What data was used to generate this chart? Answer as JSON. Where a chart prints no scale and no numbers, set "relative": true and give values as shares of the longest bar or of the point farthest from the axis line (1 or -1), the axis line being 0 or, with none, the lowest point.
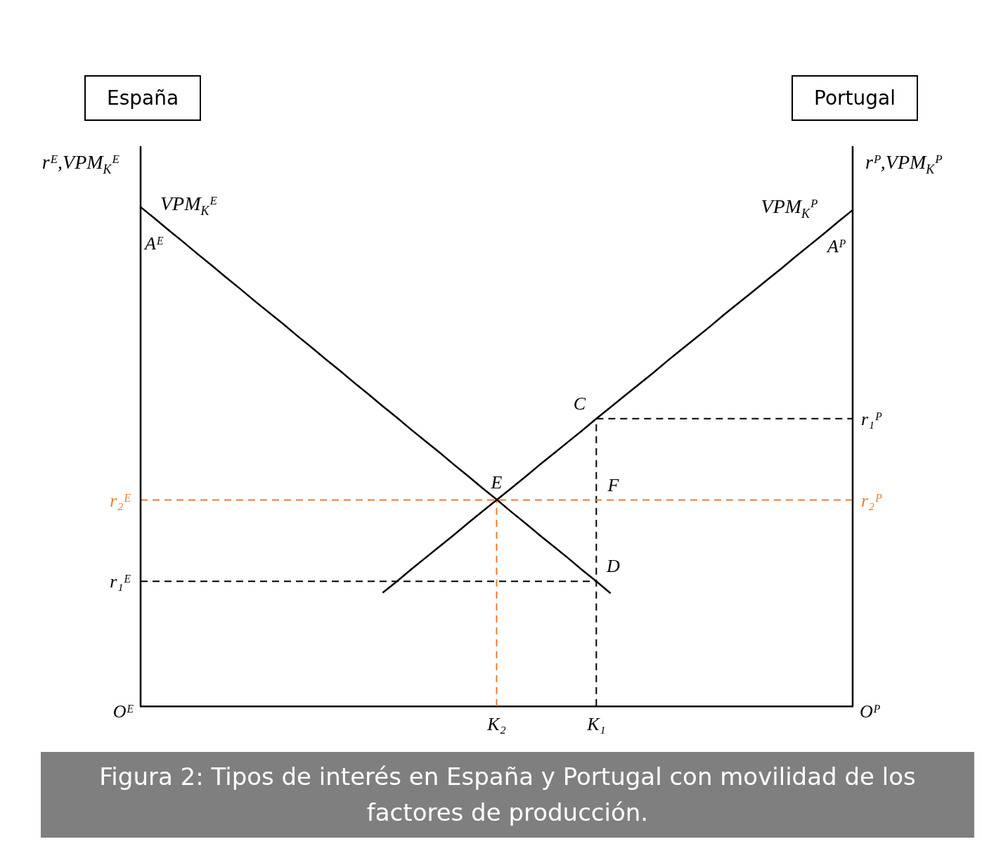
{
  "chart_data": {
    "type": "line",
    "relative": true,
    "ylabel": "rᴱ,VPM$_{K}$ᴱ",
    "y2label": "rᴾ,VPM$_{K}$ᴾ",
    "tick_labels": "x",
    "grid": false,
    "legend": false,
    "marker": "none",
    "categories": [
      null,
      null,
      null,
      null,
      null,
      null,
      null,
      null,
      null,
      null,
      null,
      null,
      null,
      null,
      null,
      null,
      null,
      null,
      null,
      null,
      null,
      null,
      null,
      null,
      null,
      "K₂",
      null,
      null,
      null,
      null,
      null,
      null,
      "K₁",
      null,
      null,
      null,
      null,
      null,
      null,
      null,
      null,
      null,
      null,
      null,
      null,
      null,
      null,
      null,
      null,
      null,
      null
    ],
    "series": [
      {
        "name": "VPM$_{K}$ᴱ",
        "color": "#000000",
        "values": [
          1,
          0.977,
          0.953,
          0.93,
          0.906,
          0.883,
          0.859,
          0.836,
          0.812,
          0.789,
          0.766,
          0.742,
          0.719,
          0.695,
          0.672,
          0.648,
          0.625,
          0.601,
          0.578,
          0.554,
          0.531,
          0.508,
          0.484,
          0.461,
          0.437,
          0.414,
          0.39,
          0.367,
          0.343,
          0.32,
          0.297,
          0.273,
          0.25,
          0.226,
          null,
          null,
          null,
          null,
          null,
          null,
          null,
          null,
          null,
          null,
          null,
          null,
          null,
          null,
          null,
          null,
          null
        ]
      },
      {
        "name": "VPM$_{K}$ᴾ",
        "color": "#000000",
        "values": [
          null,
          null,
          null,
          null,
          null,
          null,
          null,
          null,
          null,
          null,
          null,
          null,
          null,
          null,
          null,
          null,
          null,
          0.227,
          0.25,
          0.274,
          0.297,
          0.32,
          0.343,
          0.367,
          0.39,
          0.413,
          0.436,
          0.459,
          0.483,
          0.506,
          0.529,
          0.552,
          0.576,
          0.599,
          0.622,
          0.645,
          0.668,
          0.692,
          0.715,
          0.738,
          0.761,
          0.785,
          0.808,
          0.831,
          0.854,
          0.877,
          0.901,
          0.924,
          0.947,
          0.971,
          0.994
        ]
      },
      {
        "name": "r₁ᴱ",
        "color": "#000000",
        "line_style": "dashed",
        "values": [
          0.25,
          0.25,
          0.25,
          0.25,
          0.25,
          0.25,
          0.25,
          0.25,
          0.25,
          0.25,
          0.25,
          0.25,
          0.25,
          0.25,
          0.25,
          0.25,
          0.25,
          0.25,
          0.25,
          0.25,
          0.25,
          0.25,
          0.25,
          0.25,
          0.25,
          0.25,
          0.25,
          0.25,
          0.25,
          0.25,
          0.25,
          0.25,
          0.25,
          null,
          null,
          null,
          null,
          null,
          null,
          null,
          null,
          null,
          null,
          null,
          null,
          null,
          null,
          null,
          null,
          null,
          null
        ]
      },
      {
        "name": "r₂ᴱ",
        "color": "#ed7d31",
        "line_style": "dashed",
        "values": [
          0.413,
          0.413,
          0.413,
          0.413,
          0.413,
          0.413,
          0.413,
          0.413,
          0.413,
          0.413,
          0.413,
          0.413,
          0.413,
          0.413,
          0.413,
          0.413,
          0.413,
          0.413,
          0.413,
          0.413,
          0.413,
          0.413,
          0.413,
          0.413,
          0.413,
          0.413,
          0.413,
          0.413,
          0.413,
          0.413,
          0.413,
          0.413,
          0.413,
          0.413,
          0.413,
          0.413,
          0.413,
          0.413,
          0.413,
          0.413,
          0.413,
          0.413,
          0.413,
          0.413,
          0.413,
          0.413,
          0.413,
          0.413,
          0.413,
          0.413,
          0.413
        ]
      },
      {
        "name": "r₁ᴾ",
        "color": "#000000",
        "line_style": "dashed",
        "values": [
          null,
          null,
          null,
          null,
          null,
          null,
          null,
          null,
          null,
          null,
          null,
          null,
          null,
          null,
          null,
          null,
          null,
          null,
          null,
          null,
          null,
          null,
          null,
          null,
          null,
          null,
          null,
          null,
          null,
          null,
          null,
          null,
          0.576,
          0.576,
          0.576,
          0.576,
          0.576,
          0.576,
          0.576,
          0.576,
          0.576,
          0.576,
          0.576,
          0.576,
          0.576,
          0.576,
          0.576,
          0.576,
          0.576,
          0.576,
          0.576
        ]
      }
    ],
    "ref_lines": [
      {
        "axis": "x",
        "value": "K₂",
        "color": "#ed7d31",
        "line_style": "dashed"
      },
      {
        "axis": "x",
        "value": "K₁",
        "color": "#000000",
        "line_style": "dashed"
      }
    ],
    "annotations": [
      "España",
      "Portugal",
      "Aᴱ",
      "Aᴾ",
      "r₂ᴾ",
      "Oᴱ",
      "Oᴾ",
      {
        "text": "C",
        "x": "K₁",
        "y": 0.576
      },
      {
        "text": "E",
        "x": "K₂",
        "y": 0.413
      },
      {
        "text": "F",
        "x": "K₁",
        "y": 0.413
      },
      {
        "text": "D",
        "x": "K₁",
        "y": 0.25
      },
      "Figura 2: Tipos de interés en España y Portugal con movilidad de los factores de producción."
    ]
  }
}
